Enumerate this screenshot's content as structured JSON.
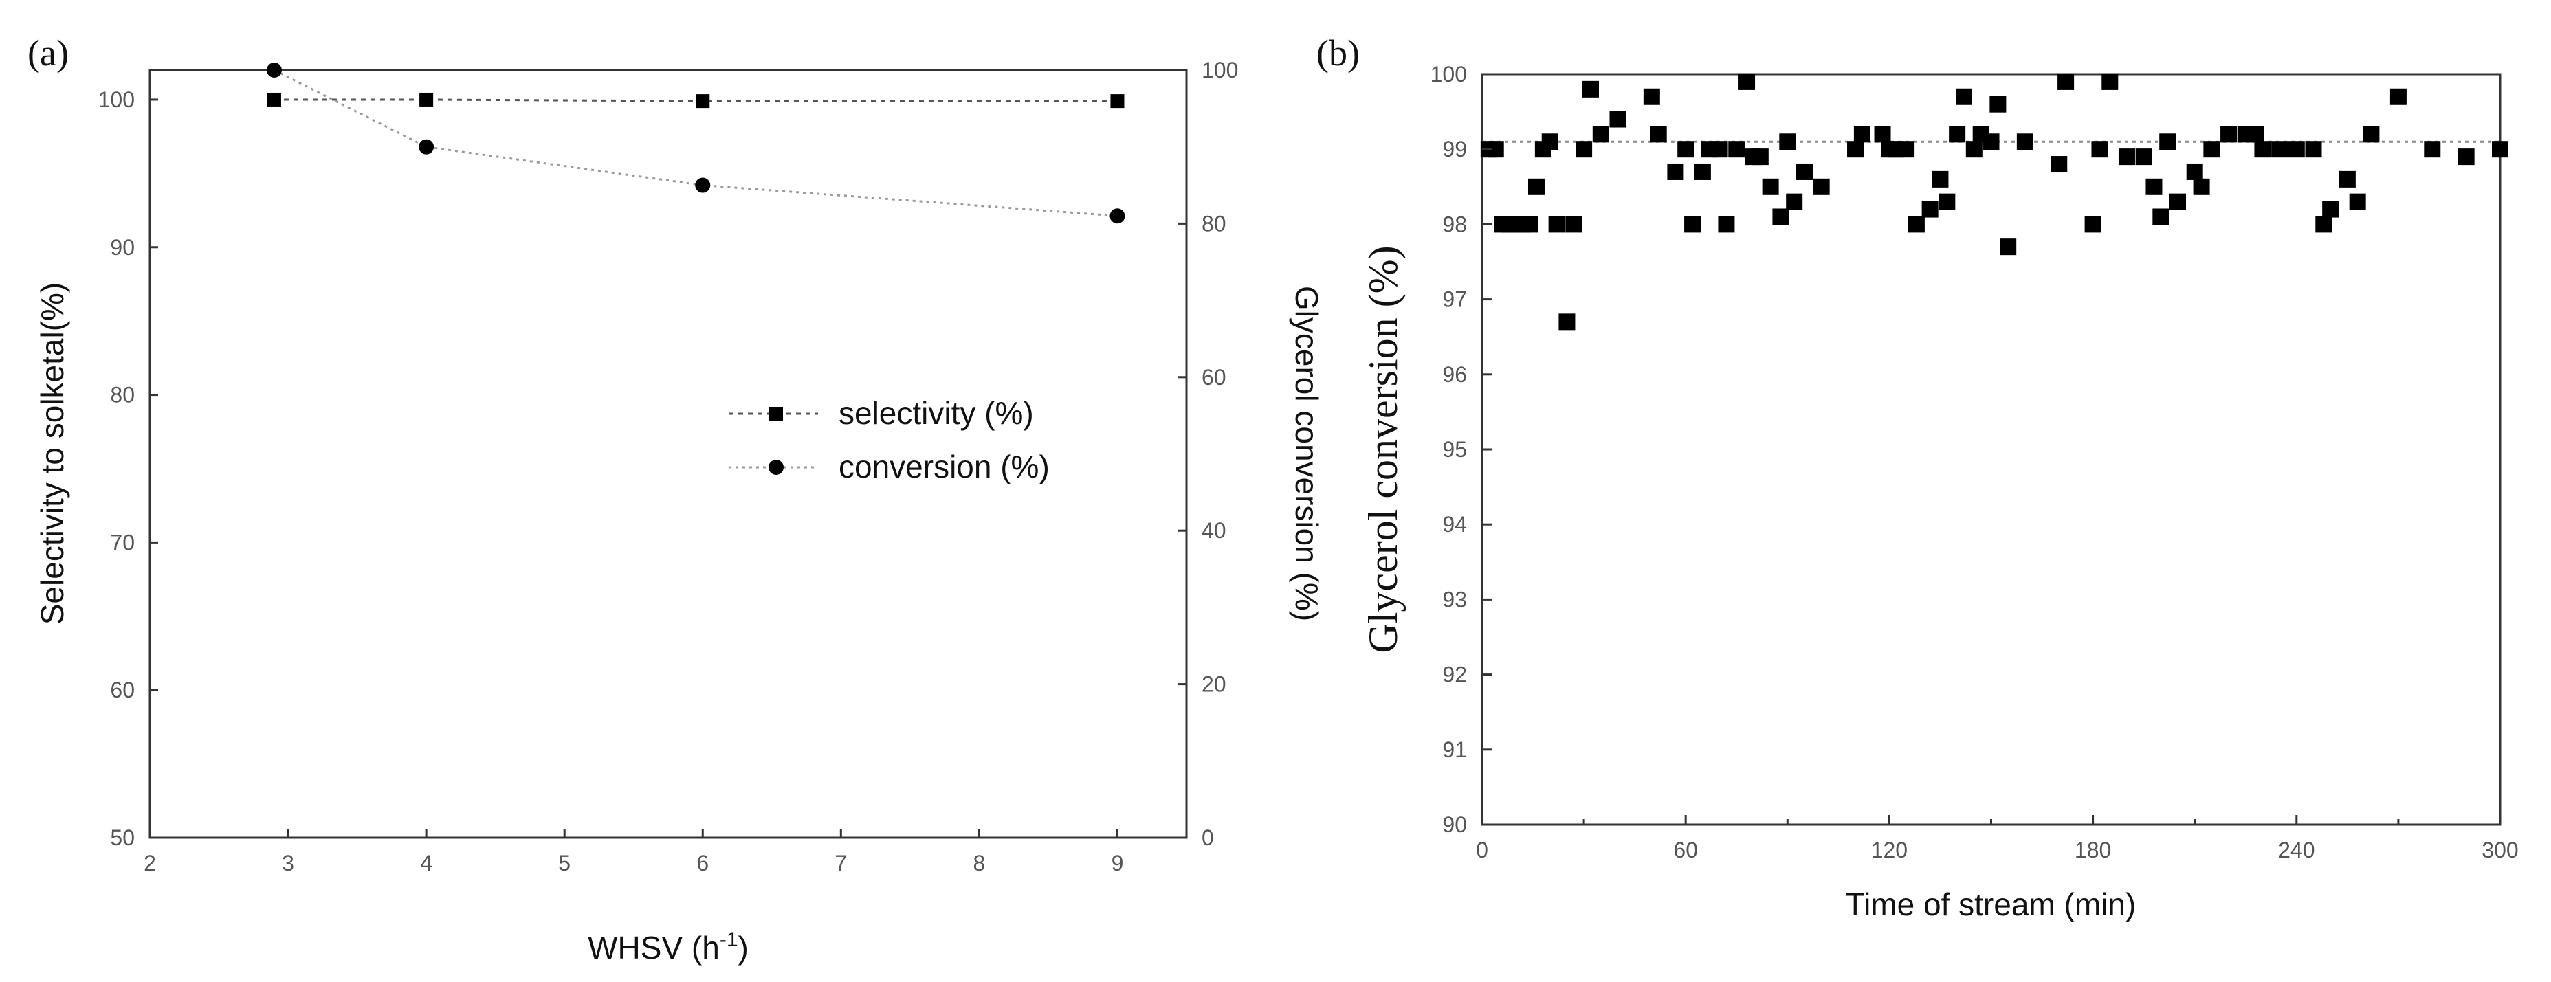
{
  "chart_data": [
    {
      "type": "line",
      "panel_label": "(a)",
      "xlabel": "WHSV (h",
      "xlabel_sup": "-1",
      "xlabel_close": ")",
      "ylabel": "Selectivity to solketal(%)",
      "y2label": "Glycerol conversion (%)",
      "xlim": [
        2,
        9.5
      ],
      "ylim": [
        50,
        102
      ],
      "y2lim": [
        0,
        100
      ],
      "xticks": [
        2,
        3,
        4,
        5,
        6,
        7,
        8,
        9
      ],
      "yticks": [
        50,
        60,
        70,
        80,
        90,
        100
      ],
      "y2ticks": [
        0,
        20,
        40,
        60,
        80,
        100
      ],
      "legend_position": "center-right",
      "series": [
        {
          "name": "selectivity (%)",
          "marker": "square",
          "axis": "left",
          "color": "#000000",
          "line_color": "#555555",
          "x": [
            2.9,
            4,
            6,
            9
          ],
          "values": [
            100,
            100,
            99.9,
            99.9
          ]
        },
        {
          "name": "conversion (%)",
          "marker": "circle",
          "axis": "right",
          "color": "#000000",
          "line_color": "#999999",
          "x": [
            2.9,
            4,
            6,
            9
          ],
          "values": [
            100,
            90,
            85,
            81
          ]
        }
      ]
    },
    {
      "type": "scatter",
      "panel_label": "(b)",
      "xlabel": "Time of stream (min)",
      "ylabel": "Glycerol conversion (%)",
      "xlim": [
        0,
        300
      ],
      "ylim": [
        90,
        100
      ],
      "xticks": [
        0,
        60,
        120,
        180,
        240,
        300
      ],
      "yticks": [
        90,
        91,
        92,
        93,
        94,
        95,
        96,
        97,
        98,
        99,
        100
      ],
      "reference_line": 99.1,
      "series": [
        {
          "name": "Glycerol conversion",
          "marker": "square",
          "color": "#000000",
          "x": [
            2,
            4,
            6,
            8,
            10,
            12,
            14,
            16,
            18,
            20,
            22,
            25,
            27,
            30,
            32,
            35,
            40,
            50,
            52,
            57,
            60,
            62,
            65,
            67,
            70,
            72,
            75,
            78,
            80,
            82,
            85,
            88,
            90,
            92,
            95,
            100,
            110,
            112,
            118,
            120,
            122,
            125,
            128,
            132,
            135,
            137,
            140,
            142,
            145,
            147,
            150,
            152,
            155,
            160,
            170,
            172,
            180,
            182,
            185,
            190,
            195,
            198,
            200,
            202,
            205,
            210,
            212,
            215,
            220,
            225,
            228,
            230,
            235,
            240,
            245,
            248,
            250,
            255,
            258,
            262,
            270,
            280,
            290,
            300
          ],
          "y": [
            99.0,
            99.0,
            98.0,
            98.0,
            98.0,
            98.0,
            98.0,
            98.5,
            99.0,
            99.1,
            98.0,
            96.7,
            98.0,
            99.0,
            99.8,
            99.2,
            99.4,
            99.7,
            99.2,
            98.7,
            99.0,
            98.0,
            98.7,
            99.0,
            99.0,
            98.0,
            99.0,
            99.9,
            98.9,
            98.9,
            98.5,
            98.1,
            99.1,
            98.3,
            98.7,
            98.5,
            99.0,
            99.2,
            99.2,
            99.0,
            99.0,
            99.0,
            98.0,
            98.2,
            98.6,
            98.3,
            99.2,
            99.7,
            99.0,
            99.2,
            99.1,
            99.6,
            97.7,
            99.1,
            98.8,
            99.9,
            98.0,
            99.0,
            99.9,
            98.9,
            98.9,
            98.5,
            98.1,
            99.1,
            98.3,
            98.7,
            98.5,
            99.0,
            99.2,
            99.2,
            99.2,
            99.0,
            99.0,
            99.0,
            99.0,
            98.0,
            98.2,
            98.6,
            98.3,
            99.2,
            99.7,
            99.0,
            98.9,
            99.0
          ]
        }
      ]
    }
  ]
}
